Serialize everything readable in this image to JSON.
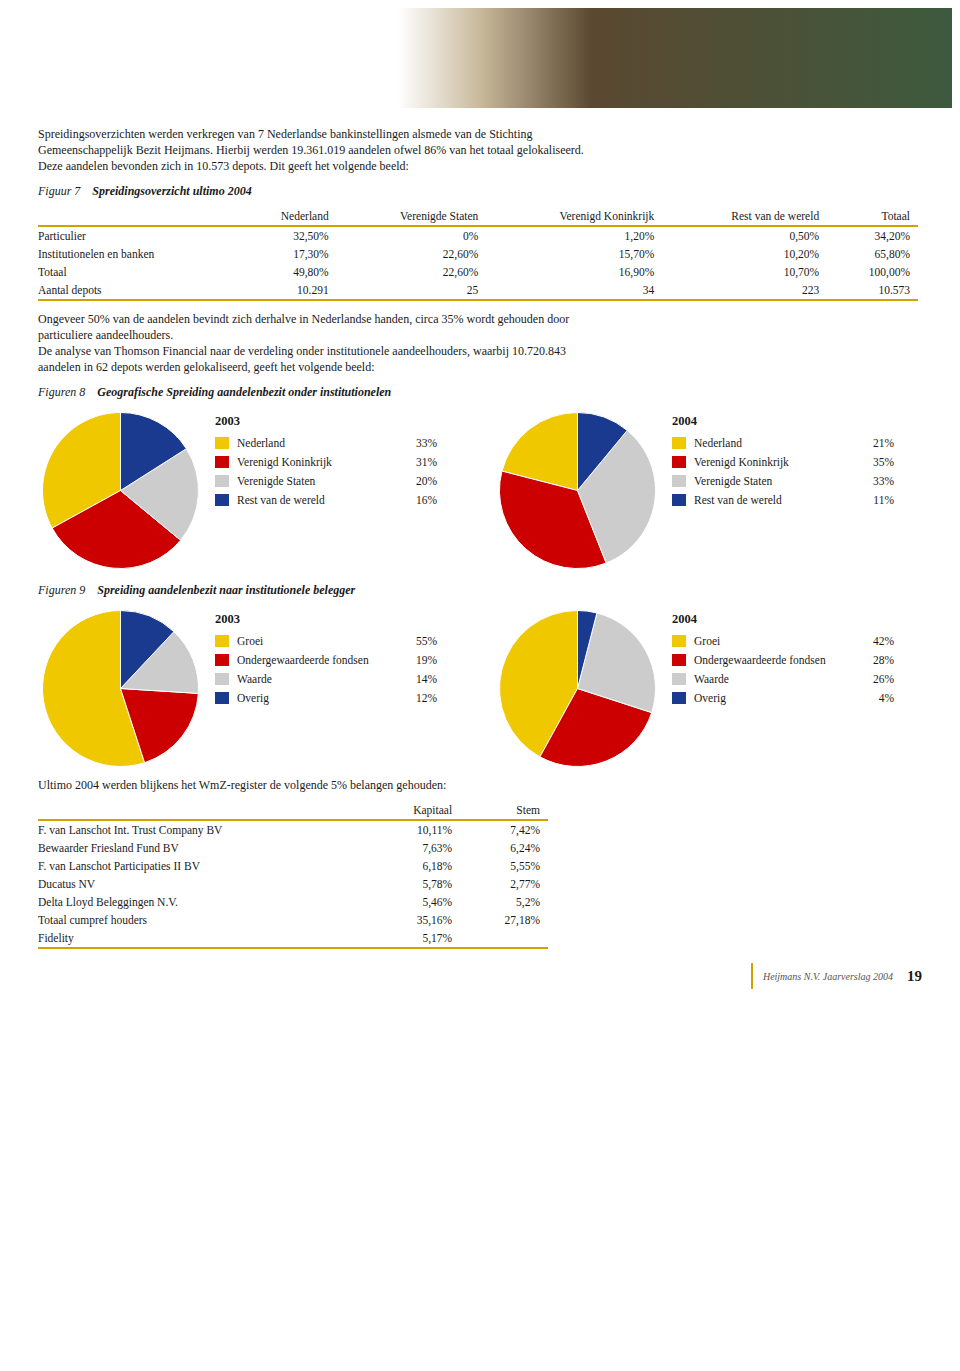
{
  "chart_data": [
    {
      "type": "text",
      "annotations": [
        "Spreidingsoverzichten werden verkregen van 7 Nederlandse bankinstellingen alsmede van de Stichting",
        "Gemeenschappelijk Bezit Heijmans. Hierbij werden 19.361.019 aandelen ofwel 86% van het totaal gelokaliseerd.",
        "Deze aandelen bevonden zich in 10.573 depots. Dit geeft het volgende beeld:"
      ]
    },
    {
      "type": "table",
      "title": "Figuur 7",
      "subtitle": "Spreidingsoverzicht ultimo 2004",
      "color": "#D4A000",
      "categories": [
        "Particulier",
        "Institutionelen en banken",
        "Totaal",
        "Aantal depots"
      ],
      "series": [
        {
          "name": "Nederland",
          "values": [
            32.5,
            17.3,
            49.8,
            10291
          ],
          "value_labels": [
            "32,50%",
            "17,30%",
            "49,80%",
            "10.291"
          ]
        },
        {
          "name": "Verenigde Staten",
          "values": [
            0,
            22.6,
            22.6,
            25
          ],
          "value_labels": [
            "0%",
            "22,60%",
            "22,60%",
            "25"
          ]
        },
        {
          "name": "Verenigd Koninkrijk",
          "values": [
            1.2,
            15.7,
            16.9,
            34
          ],
          "value_labels": [
            "1,20%",
            "15,70%",
            "16,90%",
            "34"
          ]
        },
        {
          "name": "Rest van de wereld",
          "values": [
            0.5,
            10.2,
            10.7,
            223
          ],
          "value_labels": [
            "0,50%",
            "10,20%",
            "10,70%",
            "223"
          ]
        },
        {
          "name": "Totaal",
          "values": [
            34.2,
            65.8,
            100,
            10573
          ],
          "value_labels": [
            "34,20%",
            "65,80%",
            "100,00%",
            "10.573"
          ]
        }
      ]
    },
    {
      "type": "text",
      "annotations": [
        "Ongeveer 50% van de aandelen bevindt zich derhalve in Nederlandse handen, circa 35% wordt gehouden door",
        "particuliere aandeelhouders.",
        "De analyse van Thomson Financial naar de verdeling onder institutionele aandeelhouders, waarbij 10.720.843",
        "aandelen in 62 depots werden gelokaliseerd, geeft het volgende beeld:"
      ]
    },
    {
      "type": "pie",
      "title": "Figuren 8",
      "subtitle": "Geografische Spreiding aandelenbezit onder institutionelen",
      "legend": "right",
      "categories": [
        "Nederland",
        "Verenigd Koninkrijk",
        "Verenigde Staten",
        "Rest van de wereld"
      ],
      "colors": [
        "#F0C800",
        "#CC0000",
        "#CCCCCC",
        "#1A3A8F"
      ],
      "series": [
        {
          "name": "2003",
          "values": [
            33,
            31,
            20,
            16
          ],
          "value_labels": [
            "33%",
            "31%",
            "20%",
            "16%"
          ]
        },
        {
          "name": "2004",
          "values": [
            21,
            35,
            33,
            11
          ],
          "value_labels": [
            "21%",
            "35%",
            "33%",
            "11%"
          ]
        }
      ]
    },
    {
      "type": "pie",
      "title": "Figuren 9",
      "subtitle": "Spreiding aandelenbezit naar institutionele belegger",
      "legend": "right",
      "categories": [
        "Groei",
        "Ondergewaardeerde fondsen",
        "Waarde",
        "Overig"
      ],
      "colors": [
        "#F0C800",
        "#CC0000",
        "#CCCCCC",
        "#1A3A8F"
      ],
      "series": [
        {
          "name": "2003",
          "values": [
            55,
            19,
            14,
            12
          ],
          "value_labels": [
            "55%",
            "19%",
            "14%",
            "12%"
          ]
        },
        {
          "name": "2004",
          "values": [
            42,
            28,
            26,
            4
          ],
          "value_labels": [
            "42%",
            "28%",
            "26%",
            "4%"
          ]
        }
      ]
    },
    {
      "type": "text",
      "annotations": [
        "Ultimo 2004 werden blijkens het WmZ-register de volgende 5% belangen gehouden:"
      ]
    },
    {
      "type": "table",
      "color": "#D4A000",
      "categories": [
        "F. van Lanschot Int. Trust Company BV",
        "Bewaarder Friesland Fund BV",
        "F. van Lanschot Participaties II BV",
        "Ducatus NV",
        "Delta Lloyd Beleggingen N.V.",
        "Totaal cumpref houders",
        "Fidelity"
      ],
      "series": [
        {
          "name": "Kapitaal",
          "values": [
            10.11,
            7.63,
            6.18,
            5.78,
            5.46,
            35.16,
            5.17
          ],
          "value_labels": [
            "10,11%",
            "7,63%",
            "6,18%",
            "5,78%",
            "5,46%",
            "35,16%",
            "5,17%"
          ]
        },
        {
          "name": "Stem",
          "values": [
            7.42,
            6.24,
            5.55,
            2.77,
            5.2,
            27.18,
            null
          ],
          "value_labels": [
            "7,42%",
            "6,24%",
            "5,55%",
            "2,77%",
            "5,2%",
            "27,18%",
            null
          ]
        }
      ]
    },
    {
      "type": "footer",
      "color": "#D4A000",
      "annotations": [
        "Heijmans N.V. Jaarverslag 2004",
        "19"
      ]
    }
  ]
}
